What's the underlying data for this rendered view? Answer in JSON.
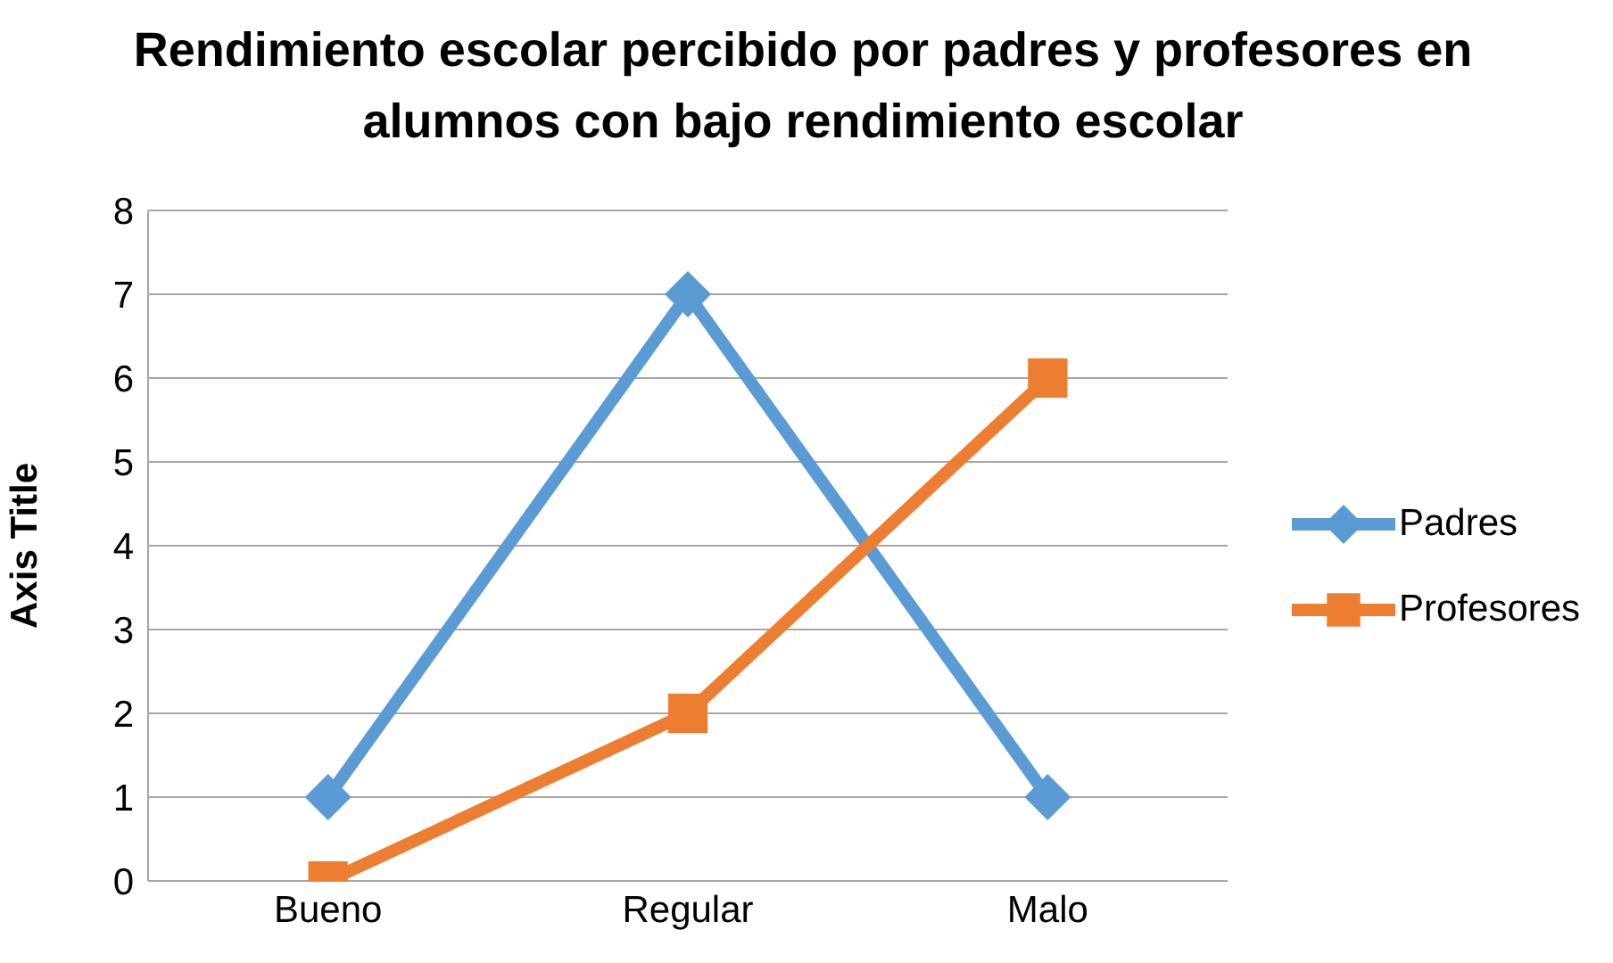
{
  "chart_data": {
    "type": "line",
    "title": "Rendimiento escolar percibido por padres y profesores en alumnos con bajo rendimiento escolar",
    "ylabel": "Axis Title",
    "categories": [
      "Bueno",
      "Regular",
      "Malo"
    ],
    "series": [
      {
        "name": "Padres",
        "color": "#5b9bd5",
        "values": [
          1,
          7,
          1
        ],
        "marker": "diamond"
      },
      {
        "name": "Profesores",
        "color": "#ed7d31",
        "values": [
          0,
          2,
          6
        ],
        "marker": "square"
      }
    ],
    "ylim": [
      0,
      8
    ],
    "yticks": [
      0,
      1,
      2,
      3,
      4,
      5,
      6,
      7,
      8
    ],
    "grid": "y",
    "legend": "right",
    "line_style": "solid"
  }
}
